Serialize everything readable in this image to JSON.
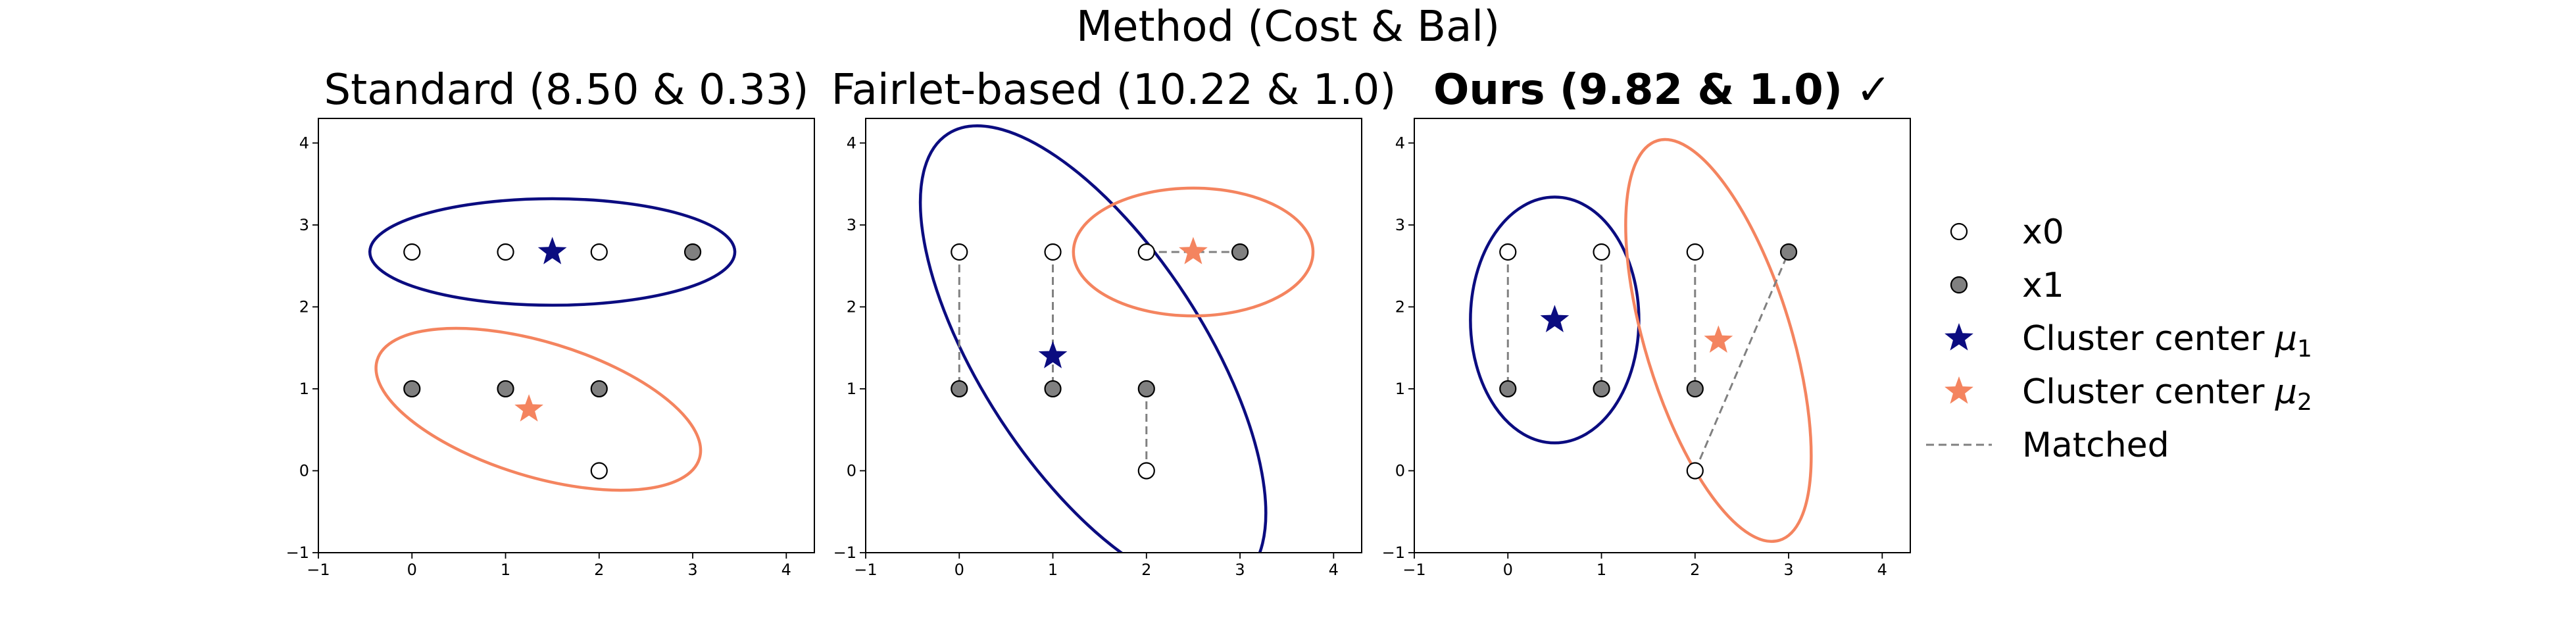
{
  "suptitle": "Method (Cost & Bal)",
  "chart_data": [
    {
      "type": "scatter",
      "title": "Standard (8.50 & 0.33)",
      "title_bold": false,
      "title_suffix": "",
      "xlim": [
        -1,
        4.3
      ],
      "ylim": [
        -1,
        4.3
      ],
      "xticks": [
        -1,
        0,
        1,
        2,
        3,
        4
      ],
      "yticks": [
        -1,
        0,
        1,
        2,
        3,
        4
      ],
      "points_x0": [
        [
          0,
          2.67
        ],
        [
          1,
          2.67
        ],
        [
          2,
          2.67
        ],
        [
          2,
          0
        ]
      ],
      "points_x1": [
        [
          3,
          2.67
        ],
        [
          0,
          1
        ],
        [
          1,
          1
        ],
        [
          2,
          1
        ]
      ],
      "centers": [
        {
          "name": "mu1",
          "x": 1.5,
          "y": 2.67,
          "color": "#0b0c80"
        },
        {
          "name": "mu2",
          "x": 1.25,
          "y": 0.75,
          "color": "#f4845f"
        }
      ],
      "ellipses": [
        {
          "cx": 1.5,
          "cy": 2.67,
          "rx": 1.95,
          "ry": 0.65,
          "angle": 0,
          "color": "#0b0c80"
        },
        {
          "cx": 1.35,
          "cy": 0.75,
          "rx": 1.8,
          "ry": 0.82,
          "angle": -17,
          "color": "#f4845f"
        }
      ],
      "matched_lines": []
    },
    {
      "type": "scatter",
      "title": "Fairlet-based (10.22 & 1.0)",
      "title_bold": false,
      "title_suffix": "",
      "xlim": [
        -1,
        4.3
      ],
      "ylim": [
        -1,
        4.3
      ],
      "xticks": [
        -1,
        0,
        1,
        2,
        3,
        4
      ],
      "yticks": [
        -1,
        0,
        1,
        2,
        3,
        4
      ],
      "points_x0": [
        [
          0,
          2.67
        ],
        [
          1,
          2.67
        ],
        [
          2,
          2.67
        ],
        [
          2,
          0
        ]
      ],
      "points_x1": [
        [
          3,
          2.67
        ],
        [
          0,
          1
        ],
        [
          1,
          1
        ],
        [
          2,
          1
        ]
      ],
      "centers": [
        {
          "name": "mu1",
          "x": 1,
          "y": 1.4,
          "color": "#0b0c80"
        },
        {
          "name": "mu2",
          "x": 2.5,
          "y": 2.67,
          "color": "#f4845f"
        }
      ],
      "ellipses": [
        {
          "cx": 1.43,
          "cy": 1.38,
          "rx": 2.85,
          "ry": 1.36,
          "angle": -57,
          "color": "#0b0c80"
        },
        {
          "cx": 2.5,
          "cy": 2.67,
          "rx": 1.28,
          "ry": 0.78,
          "angle": 0,
          "color": "#f4845f"
        }
      ],
      "matched_lines": [
        [
          [
            0,
            2.67
          ],
          [
            0,
            1
          ]
        ],
        [
          [
            1,
            2.67
          ],
          [
            1,
            1
          ]
        ],
        [
          [
            2,
            1
          ],
          [
            2,
            0
          ]
        ],
        [
          [
            2,
            2.67
          ],
          [
            3,
            2.67
          ]
        ]
      ]
    },
    {
      "type": "scatter",
      "title": "Ours (9.82 & 1.0)",
      "title_bold": true,
      "title_suffix": " ✓",
      "xlim": [
        -1,
        4.3
      ],
      "ylim": [
        -1,
        4.3
      ],
      "xticks": [
        -1,
        0,
        1,
        2,
        3,
        4
      ],
      "yticks": [
        -1,
        0,
        1,
        2,
        3,
        4
      ],
      "points_x0": [
        [
          0,
          2.67
        ],
        [
          1,
          2.67
        ],
        [
          2,
          2.67
        ],
        [
          2,
          0
        ]
      ],
      "points_x1": [
        [
          3,
          2.67
        ],
        [
          0,
          1
        ],
        [
          1,
          1
        ],
        [
          2,
          1
        ]
      ],
      "centers": [
        {
          "name": "mu1",
          "x": 0.5,
          "y": 1.84,
          "color": "#0b0c80"
        },
        {
          "name": "mu2",
          "x": 2.25,
          "y": 1.59,
          "color": "#f4845f"
        }
      ],
      "ellipses": [
        {
          "cx": 0.5,
          "cy": 1.84,
          "rx": 0.9,
          "ry": 1.5,
          "angle": 0,
          "color": "#0b0c80"
        },
        {
          "cx": 2.25,
          "cy": 1.59,
          "rx": 0.78,
          "ry": 2.55,
          "angle": 17,
          "color": "#f4845f"
        }
      ],
      "matched_lines": [
        [
          [
            0,
            2.67
          ],
          [
            0,
            1
          ]
        ],
        [
          [
            1,
            2.67
          ],
          [
            1,
            1
          ]
        ],
        [
          [
            2,
            2.67
          ],
          [
            2,
            1
          ]
        ],
        [
          [
            2,
            0
          ],
          [
            3,
            2.67
          ]
        ]
      ]
    }
  ],
  "legend": {
    "placement": "right",
    "entries": [
      {
        "key": "x0",
        "label": "x0",
        "marker": "circle-open"
      },
      {
        "key": "x1",
        "label": "x1",
        "marker": "circle-filled"
      },
      {
        "key": "mu1",
        "label": "Cluster center ",
        "sym": "μ",
        "sub": "1",
        "marker": "star",
        "color": "#0b0c80"
      },
      {
        "key": "mu2",
        "label": "Cluster center ",
        "sym": "μ",
        "sub": "2",
        "marker": "star",
        "color": "#f4845f"
      },
      {
        "key": "matched",
        "label": "Matched",
        "marker": "dashed-line"
      }
    ]
  },
  "colors": {
    "x1_fill": "#808080",
    "point_edge": "#000000",
    "matched_line": "#808080"
  }
}
